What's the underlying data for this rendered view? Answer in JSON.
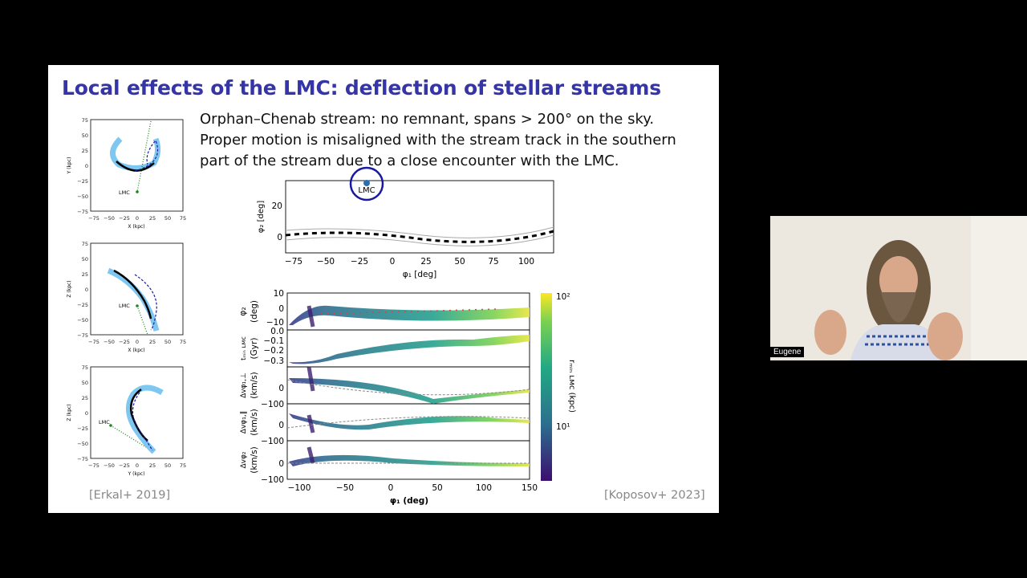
{
  "slide": {
    "title": "Local effects of the LMC: deflection of stellar streams",
    "text_lines": [
      "Orphan–Chenab stream: no remnant, spans > 200° on the sky.",
      "Proper motion is misaligned with the stream track in the southern",
      "part of the stream due to a close encounter with the LMC."
    ],
    "citation_left": "[Erkal+ 2019]",
    "citation_right": "[Koposov+ 2023]"
  },
  "erkal_panels": [
    {
      "ylabel": "Y (kpc)",
      "xlabel": "X (kpc)",
      "lmc_label": "LMC"
    },
    {
      "ylabel": "Z (kpc)",
      "xlabel": "X (kpc)",
      "lmc_label": "LMC"
    },
    {
      "ylabel": "Z (kpc)",
      "xlabel": "Y (kpc)",
      "lmc_label": "LMC"
    }
  ],
  "erkal_ticks": [
    "−75",
    "−50",
    "−25",
    "0",
    "25",
    "50",
    "75"
  ],
  "erkal_yticks": [
    "75",
    "50",
    "25",
    "0",
    "−25",
    "−50",
    "−75"
  ],
  "top_plot": {
    "ylabel": "φ₂ [deg]",
    "xlabel": "φ₁ [deg]",
    "xticks": [
      "−75",
      "−50",
      "−25",
      "0",
      "25",
      "50",
      "75",
      "100"
    ],
    "yticks": [
      "20",
      "0"
    ],
    "lmc_label": "LMC"
  },
  "stack_plot": {
    "xlabel": "φ₁ (deg)",
    "xticks": [
      "−100",
      "−50",
      "0",
      "50",
      "100",
      "150"
    ],
    "panels": [
      {
        "ylabel1": "φ₂",
        "ylabel2": "(deg)",
        "yticks": [
          "10",
          "0",
          "−10"
        ]
      },
      {
        "ylabel1": "tₘᵢₙ ʟᴍᴄ",
        "ylabel2": "(Gyr)",
        "yticks": [
          "0.0",
          "−0.1",
          "−0.2",
          "−0.3"
        ]
      },
      {
        "ylabel1": "Δvφ₁,⊥",
        "ylabel2": "(km/s)",
        "yticks": [
          "0",
          "−100"
        ]
      },
      {
        "ylabel1": "Δvφ₁,∥",
        "ylabel2": "(km/s)",
        "yticks": [
          "0",
          "−100"
        ]
      },
      {
        "ylabel1": "Δvφ₂",
        "ylabel2": "(km/s)",
        "yticks": [
          "0",
          "−100"
        ]
      }
    ],
    "colorbar_label": "rₘᵢₙ ʟᴍᴄ (kpc)",
    "colorbar_ticks": [
      "10²",
      "10¹"
    ]
  },
  "participant": {
    "name": "Eugene"
  }
}
